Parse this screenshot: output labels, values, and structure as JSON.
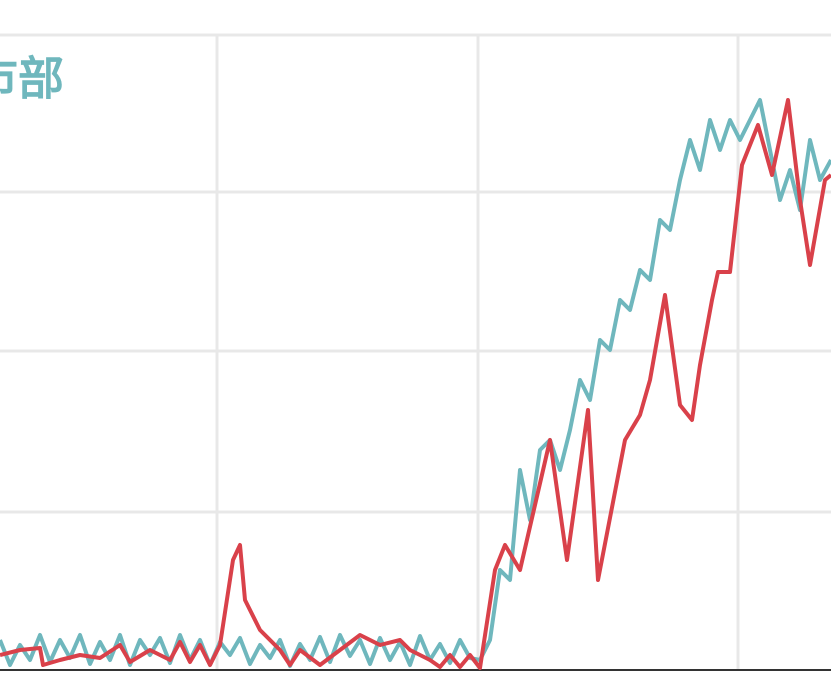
{
  "chart_data": {
    "type": "line",
    "title": "市部",
    "xlim": [
      0,
      83.1
    ],
    "xticks": [
      21.7,
      47.8,
      73.8
    ],
    "ylim": [
      0,
      67
    ],
    "yticks": [
      0,
      15.8,
      31.9,
      47.8,
      63.5
    ],
    "grid": true,
    "series": [
      {
        "name": null,
        "color": "#6fb7bd",
        "x": [
          0,
          1,
          2,
          3,
          4,
          5,
          6,
          7,
          8,
          9,
          10,
          11,
          12,
          13,
          14,
          15,
          16,
          17,
          18,
          19,
          20,
          21,
          22,
          23,
          24,
          25,
          26,
          27,
          28,
          29,
          30,
          31,
          32,
          33,
          34,
          35,
          36,
          37,
          38,
          39,
          40,
          41,
          42,
          43,
          44,
          45,
          46,
          47,
          48,
          49,
          50,
          51,
          52,
          53,
          54,
          55,
          56,
          57,
          58,
          59,
          60,
          61,
          62,
          63,
          64,
          65,
          66,
          67,
          68,
          69,
          70,
          71,
          72,
          73,
          74,
          75,
          76,
          77,
          78,
          79,
          80,
          81,
          82,
          83.1
        ],
        "values": [
          3,
          0.5,
          2.5,
          1,
          3.5,
          0.8,
          3,
          1.2,
          3.5,
          0.6,
          2.8,
          1,
          3.5,
          0.5,
          3,
          1.5,
          3.2,
          0.7,
          3.5,
          1,
          3,
          0.5,
          2.8,
          1.5,
          3.2,
          0.6,
          2.5,
          1.2,
          3,
          0.4,
          2.6,
          1,
          3.3,
          0.8,
          3.5,
          1.4,
          3,
          0.6,
          3.2,
          1,
          2.8,
          0.5,
          3.4,
          1,
          2.6,
          0.7,
          3,
          1.2,
          1,
          3,
          10,
          9,
          20,
          15,
          22,
          23,
          20,
          24,
          29,
          27,
          33,
          32,
          37,
          36,
          40,
          39,
          45,
          44,
          49,
          53,
          50,
          55,
          52,
          55,
          53,
          55,
          57,
          52,
          47,
          50,
          46,
          53,
          49,
          51
        ]
      },
      {
        "name": null,
        "color": "#d9414a",
        "x": [
          0,
          2,
          4,
          4.3,
          6,
          8,
          10,
          12,
          13,
          15,
          17,
          18,
          19,
          20,
          21,
          22,
          23.3,
          24,
          24.5,
          26,
          28,
          29,
          30,
          32,
          34,
          36,
          38,
          40,
          41,
          43,
          44,
          45,
          46,
          47,
          48,
          49.5,
          50.5,
          52,
          55,
          56.7,
          58.8,
          59.8,
          62.5,
          64,
          65,
          66.5,
          68,
          69.2,
          70,
          71.2,
          71.8,
          73,
          74.2,
          75.8,
          77.2,
          78.8,
          80,
          81,
          82.5,
          83.1
        ],
        "values": [
          1.5,
          2,
          2.2,
          0.5,
          1,
          1.5,
          1.2,
          2.5,
          0.8,
          2,
          1,
          2.8,
          0.8,
          2.5,
          0.5,
          2.5,
          11,
          12.5,
          7,
          4,
          2,
          0.5,
          2,
          0.5,
          2,
          3.5,
          2.5,
          3,
          2,
          1,
          0.3,
          1.5,
          0.3,
          1.5,
          0.2,
          10,
          12.5,
          10,
          23,
          11,
          26,
          9,
          23,
          25.5,
          29,
          37.5,
          26.5,
          25,
          30.5,
          37,
          39.8,
          39.8,
          50.5,
          54.5,
          49.5,
          57,
          47,
          40.5,
          49,
          49.5
        ]
      }
    ]
  }
}
